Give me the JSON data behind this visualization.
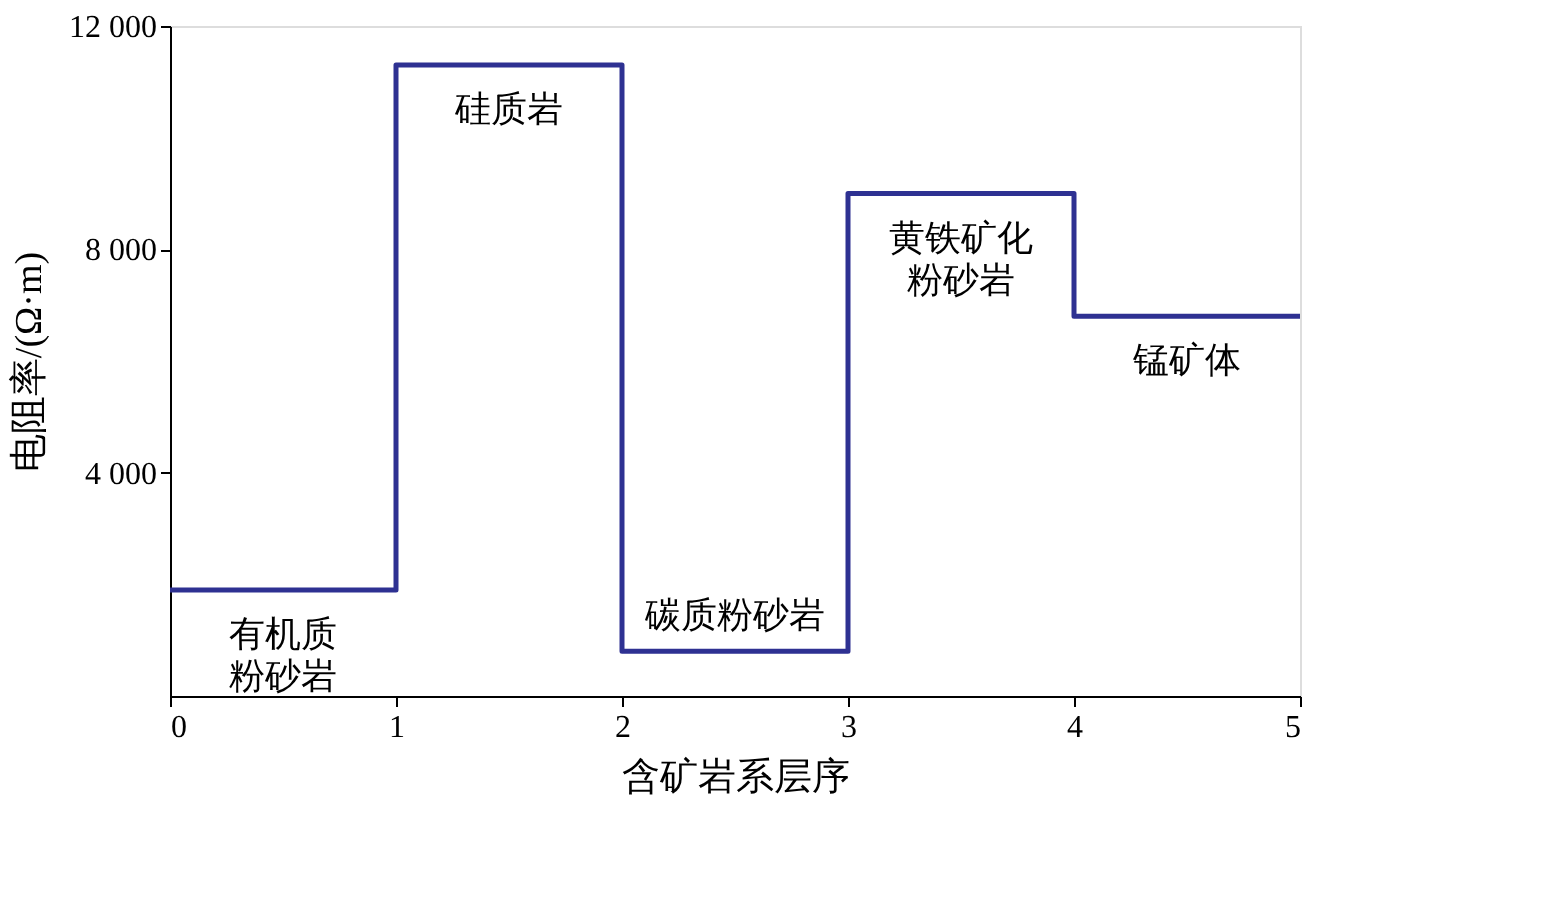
{
  "chart_data": {
    "type": "step",
    "xlabel": "含矿岩系层序",
    "ylabel": "电阻率/(Ω·m)",
    "x": [
      0,
      1,
      2,
      3,
      4,
      5
    ],
    "series": [
      {
        "color": "#2e3192",
        "values": [
          1900,
          11300,
          800,
          9000,
          6800,
          6800
        ]
      }
    ],
    "xlim": [
      0,
      5
    ],
    "xticks": [
      0,
      1,
      2,
      3,
      4,
      5
    ],
    "ylim": [
      0,
      12000
    ],
    "yticks": [
      {
        "value": 4000,
        "label": "4 000"
      },
      {
        "value": 8000,
        "label": "8 000"
      },
      {
        "value": 12000,
        "label": "12 000"
      }
    ],
    "grid": false,
    "annotations": [
      "有机质粉砂岩",
      "硅质岩",
      "碳质粉砂岩",
      "黄铁矿化粉砂岩",
      "锰矿体"
    ]
  }
}
